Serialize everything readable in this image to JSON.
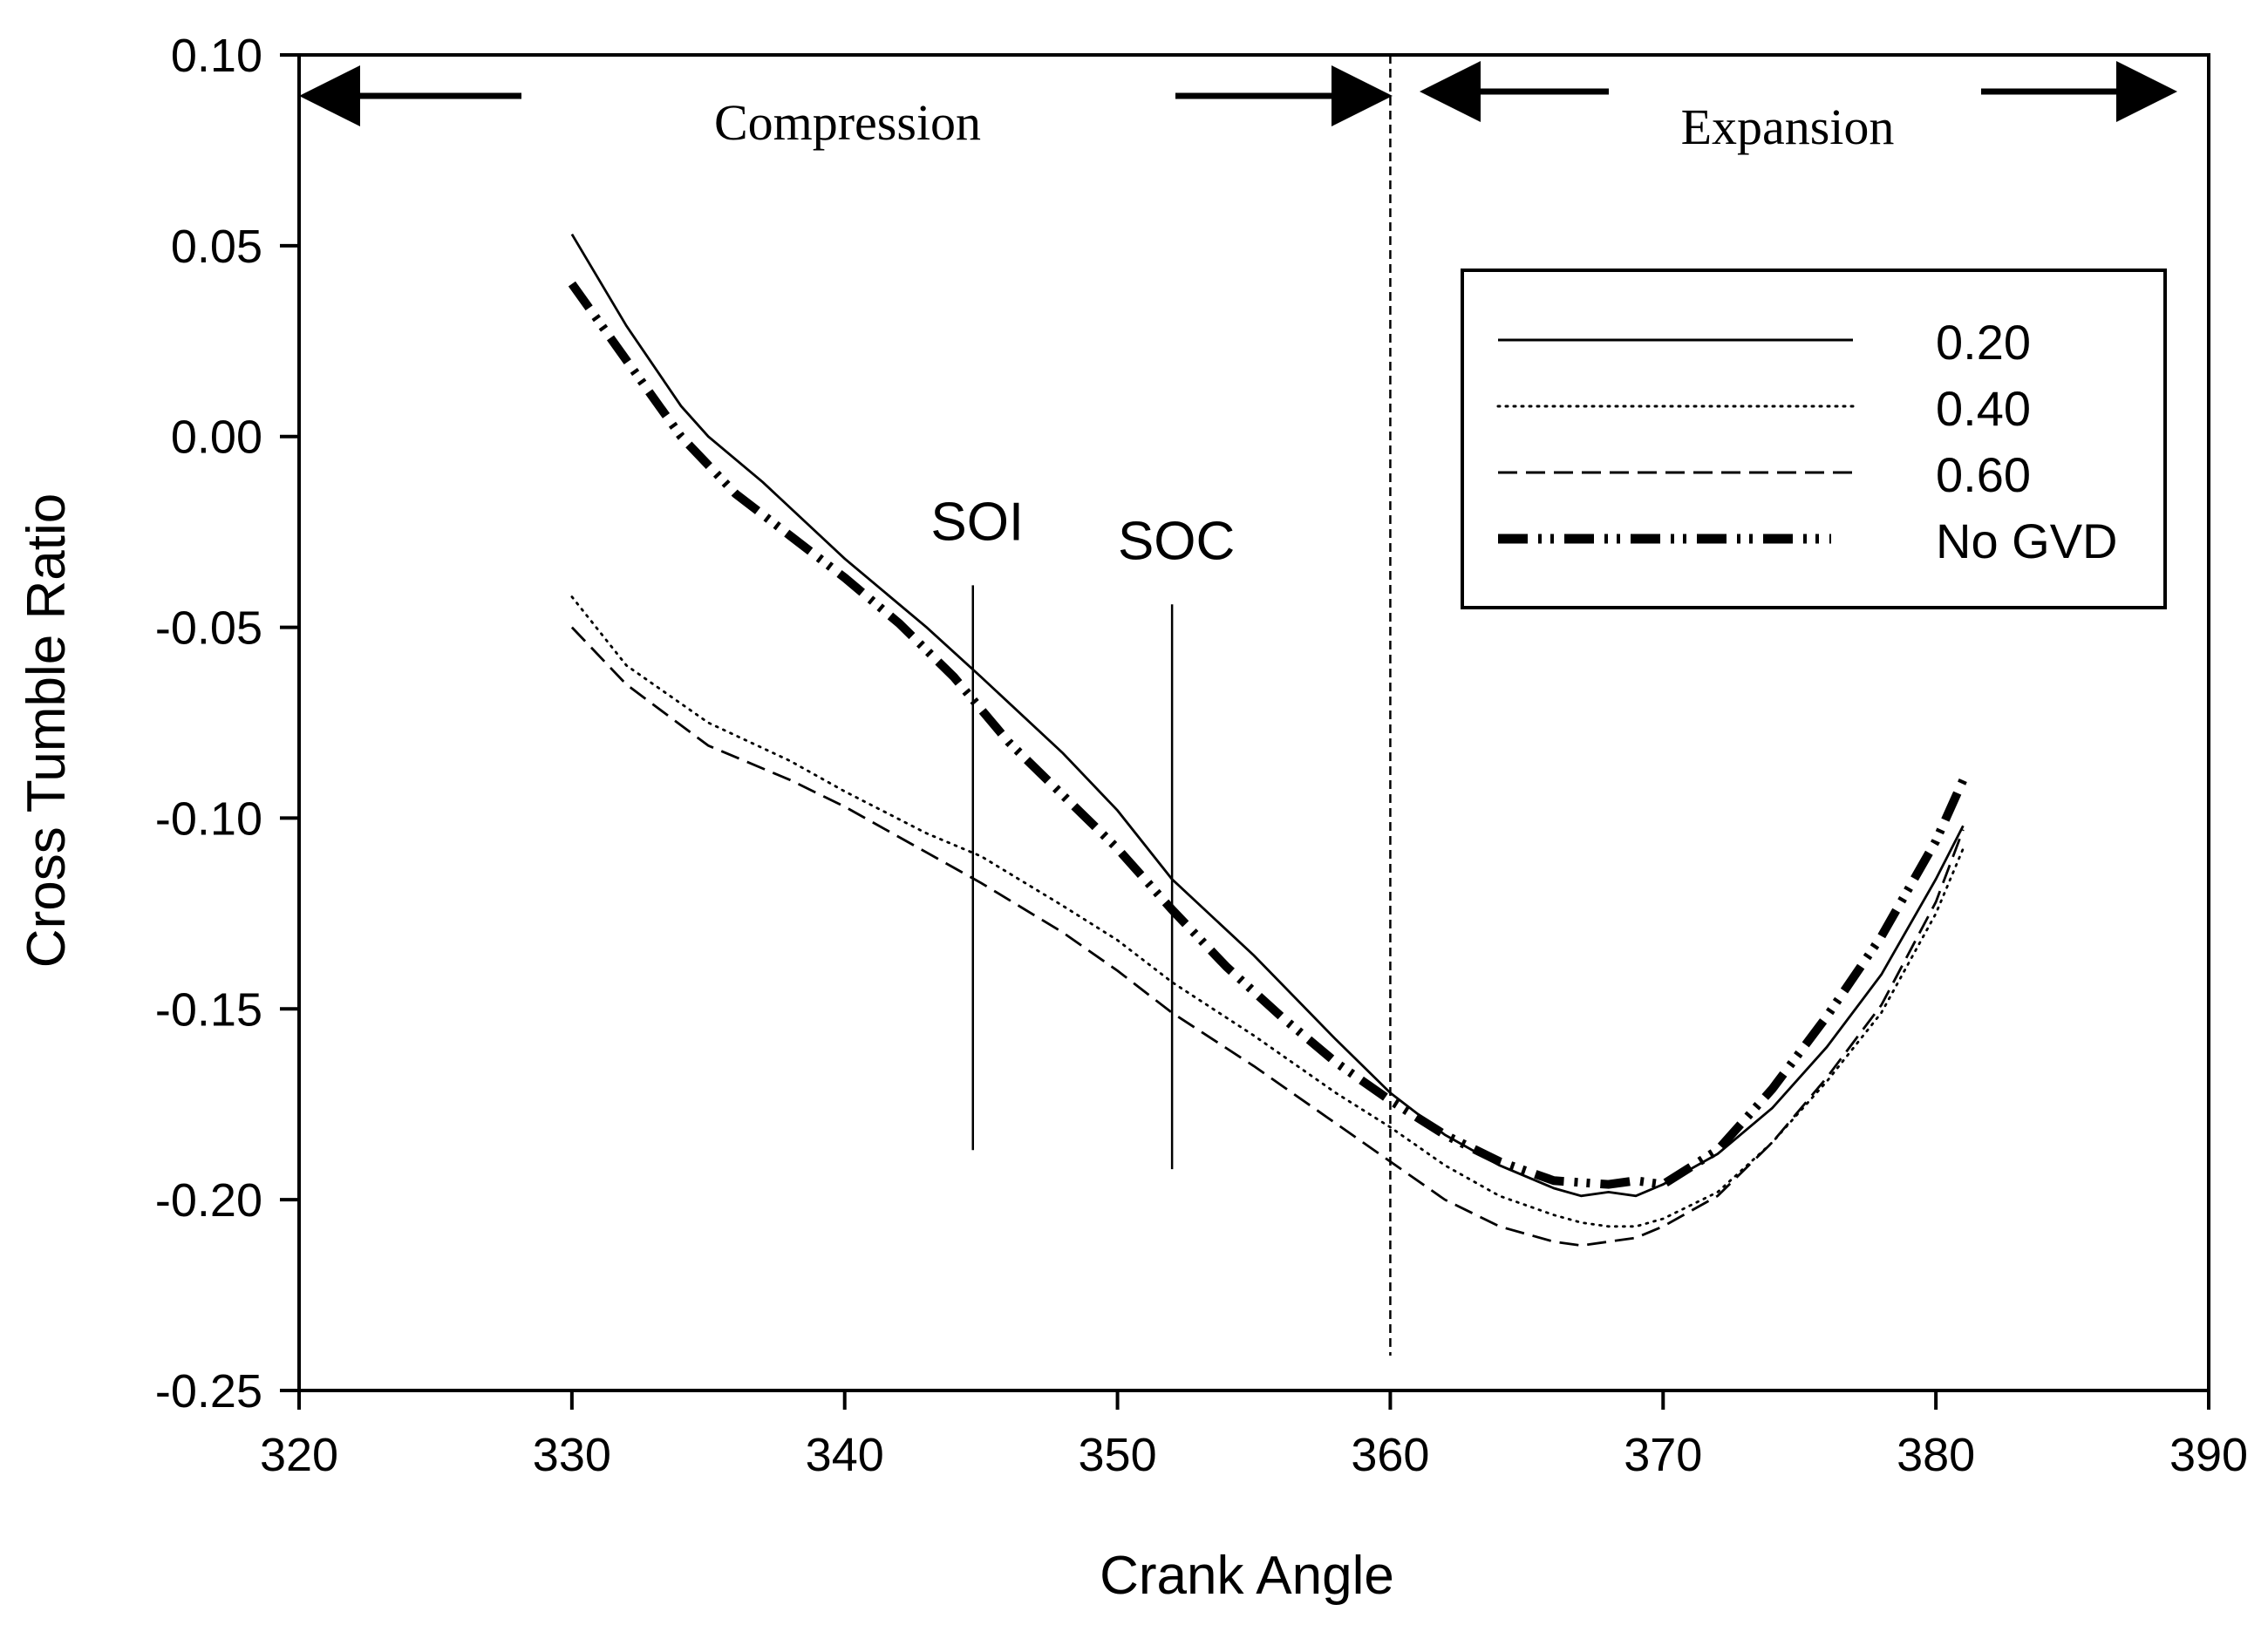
{
  "chart_data": {
    "type": "line",
    "xlabel": "Crank Angle",
    "ylabel": "Cross Tumble Ratio",
    "xlim": [
      320,
      390
    ],
    "ylim": [
      -0.25,
      0.1
    ],
    "x_ticks": [
      "320",
      "330",
      "340",
      "350",
      "360",
      "370",
      "380",
      "390"
    ],
    "y_ticks": [
      "0.10",
      "0.05",
      "0.00",
      "-0.05",
      "-0.10",
      "-0.15",
      "-0.20",
      "-0.25"
    ],
    "grid": false,
    "legend_position": "upper-right",
    "regions": [
      {
        "label": "Compression",
        "from": 320,
        "to": 360
      },
      {
        "label": "Expansion",
        "from": 360,
        "to": 390
      }
    ],
    "annotations": [
      {
        "label": "SOI",
        "x": 344.7,
        "y_from": -0.187,
        "y_to": -0.039
      },
      {
        "label": "SOC",
        "x": 352,
        "y_from": -0.192,
        "y_to": -0.044
      }
    ],
    "tdc_line_x": 360,
    "series": [
      {
        "name": "0.20",
        "style": "solid",
        "x": [
          330,
          332,
          334,
          335,
          337,
          340,
          343,
          345,
          348,
          350,
          352,
          355,
          358,
          360,
          362,
          364,
          366,
          367,
          368,
          369,
          370,
          372,
          374,
          376,
          378,
          380,
          381
        ],
        "y": [
          0.053,
          0.029,
          0.008,
          0.0,
          -0.012,
          -0.032,
          -0.05,
          -0.063,
          -0.083,
          -0.098,
          -0.116,
          -0.136,
          -0.158,
          -0.172,
          -0.183,
          -0.191,
          -0.197,
          -0.199,
          -0.198,
          -0.199,
          -0.196,
          -0.188,
          -0.176,
          -0.16,
          -0.141,
          -0.116,
          -0.102
        ]
      },
      {
        "name": "0.40",
        "style": "dotted",
        "x": [
          330,
          332,
          335,
          338,
          340,
          343,
          345,
          348,
          350,
          352,
          355,
          358,
          360,
          362,
          364,
          366,
          367,
          368,
          369,
          370,
          372,
          374,
          376,
          378,
          380,
          381
        ],
        "y": [
          -0.042,
          -0.06,
          -0.075,
          -0.085,
          -0.093,
          -0.104,
          -0.11,
          -0.123,
          -0.132,
          -0.143,
          -0.157,
          -0.172,
          -0.181,
          -0.191,
          -0.199,
          -0.204,
          -0.206,
          -0.207,
          -0.207,
          -0.205,
          -0.198,
          -0.185,
          -0.169,
          -0.151,
          -0.125,
          -0.108
        ]
      },
      {
        "name": "0.60",
        "style": "dashed",
        "x": [
          330,
          332,
          335,
          338,
          340,
          343,
          345,
          348,
          350,
          352,
          355,
          358,
          360,
          362,
          364,
          366,
          367,
          368,
          369,
          370,
          372,
          374,
          376,
          378,
          380,
          381
        ],
        "y": [
          -0.05,
          -0.065,
          -0.081,
          -0.09,
          -0.097,
          -0.109,
          -0.117,
          -0.13,
          -0.14,
          -0.151,
          -0.165,
          -0.18,
          -0.19,
          -0.2,
          -0.207,
          -0.211,
          -0.212,
          -0.211,
          -0.21,
          -0.207,
          -0.199,
          -0.185,
          -0.168,
          -0.149,
          -0.122,
          -0.103
        ]
      },
      {
        "name": "No GVD",
        "style": "dash-dot-dot-thick",
        "x": [
          330,
          332,
          334,
          336,
          338,
          340,
          342,
          344,
          346,
          348,
          350,
          352,
          354,
          356,
          358,
          360,
          362,
          364,
          366,
          368,
          369,
          370,
          372,
          374,
          376,
          378,
          380,
          381
        ],
        "y": [
          0.04,
          0.02,
          0.0,
          -0.015,
          -0.026,
          -0.037,
          -0.049,
          -0.063,
          -0.08,
          -0.094,
          -0.108,
          -0.124,
          -0.139,
          -0.152,
          -0.164,
          -0.174,
          -0.183,
          -0.19,
          -0.195,
          -0.196,
          -0.195,
          -0.196,
          -0.187,
          -0.171,
          -0.152,
          -0.131,
          -0.106,
          -0.09
        ]
      }
    ]
  }
}
